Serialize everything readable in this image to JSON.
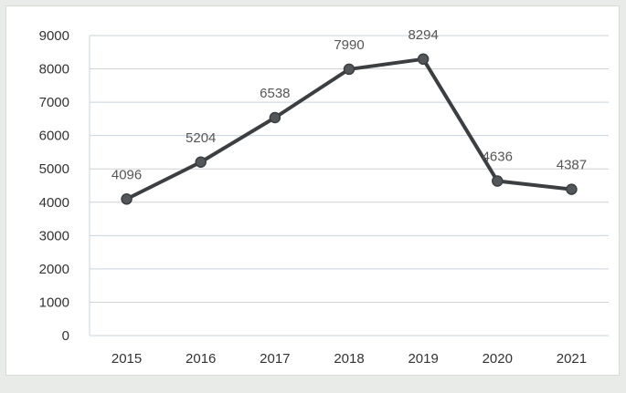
{
  "chart_data": {
    "type": "line",
    "categories": [
      "2015",
      "2016",
      "2017",
      "2018",
      "2019",
      "2020",
      "2021"
    ],
    "values": [
      4096,
      5204,
      6538,
      7990,
      8294,
      4636,
      4387
    ],
    "data_labels": [
      "4096",
      "5204",
      "6538",
      "7990",
      "8294",
      "4636",
      "4387"
    ],
    "ylim": [
      0,
      9000
    ],
    "yticks": [
      "0",
      "1000",
      "2000",
      "3000",
      "4000",
      "5000",
      "6000",
      "7000",
      "8000",
      "9000"
    ],
    "title": "",
    "xlabel": "",
    "ylabel": "",
    "grid": true,
    "legend": "none",
    "colors": {
      "line": "#3c3f42",
      "marker": "#54575a",
      "grid": "#c9d3dc",
      "label": "#555555",
      "tick": "#333333"
    }
  }
}
